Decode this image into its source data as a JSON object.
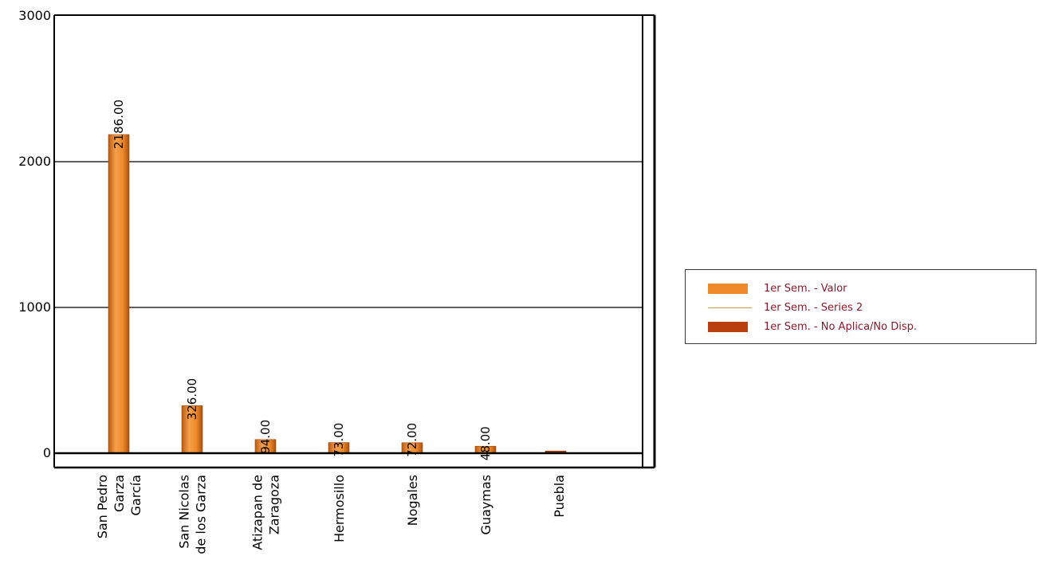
{
  "chart_data": {
    "type": "bar",
    "categories": [
      [
        "San Pedro",
        "Garza",
        "García"
      ],
      [
        "San Nicolas",
        "de los Garza"
      ],
      [
        "Atizapan de",
        "Zaragoza"
      ],
      [
        "Hermosillo"
      ],
      [
        "Nogales"
      ],
      [
        "Guaymas"
      ],
      [
        "Puebla"
      ]
    ],
    "series": [
      {
        "name": "1er Sem. - Valor",
        "kind": "bar",
        "color": "#ef8a2a",
        "values": [
          2186,
          326,
          94,
          73,
          72,
          48,
          null
        ],
        "labels": [
          "2186.00",
          "326.00",
          "94.00",
          "73.00",
          "72.00",
          "48.00",
          ""
        ]
      },
      {
        "name": "1er Sem. - Series 2",
        "kind": "line",
        "color": "#c9a04a",
        "values": [
          null,
          null,
          null,
          null,
          null,
          null,
          null
        ]
      },
      {
        "name": "1er Sem. - No Aplica/No Disp.",
        "kind": "bar",
        "color": "#b8400f",
        "values": [
          null,
          null,
          null,
          null,
          null,
          null,
          15
        ]
      }
    ],
    "yticks": [
      0,
      1000,
      2000,
      3000
    ],
    "ylim": [
      -100,
      3000
    ],
    "grid": true,
    "legend_position": "right",
    "legend_text_color": "#8b1a2b"
  }
}
